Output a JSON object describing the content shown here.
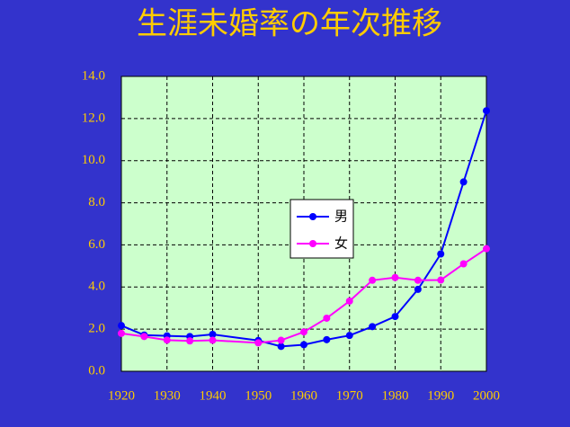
{
  "chart_data": {
    "type": "line",
    "title": "生涯未婚率の年次推移",
    "x": [
      1920,
      1925,
      1930,
      1935,
      1940,
      1950,
      1955,
      1960,
      1965,
      1970,
      1975,
      1980,
      1985,
      1990,
      1995,
      2000
    ],
    "series": [
      {
        "name": "男",
        "color": "#0000ff",
        "values": [
          2.17,
          1.72,
          1.68,
          1.65,
          1.75,
          1.46,
          1.18,
          1.26,
          1.5,
          1.7,
          2.12,
          2.6,
          3.89,
          5.57,
          8.99,
          12.37
        ]
      },
      {
        "name": "女",
        "color": "#ff00ff",
        "values": [
          1.8,
          1.65,
          1.48,
          1.44,
          1.47,
          1.35,
          1.47,
          1.87,
          2.52,
          3.33,
          4.32,
          4.45,
          4.32,
          4.33,
          5.1,
          5.82
        ]
      }
    ],
    "xlim": [
      1920,
      2000
    ],
    "xticks": [
      1920,
      1930,
      1940,
      1950,
      1960,
      1970,
      1980,
      1990,
      2000
    ],
    "ylim": [
      0,
      14
    ],
    "yticks": [
      {
        "value": 0,
        "label": "0.0"
      },
      {
        "value": 2,
        "label": "2.0"
      },
      {
        "value": 4,
        "label": "4.0"
      },
      {
        "value": 6,
        "label": "6.0"
      },
      {
        "value": 8,
        "label": "8.0"
      },
      {
        "value": 10,
        "label": "10.0"
      },
      {
        "value": 12,
        "label": "12.0"
      },
      {
        "value": 14,
        "label": "14.0"
      }
    ],
    "grid": true
  }
}
